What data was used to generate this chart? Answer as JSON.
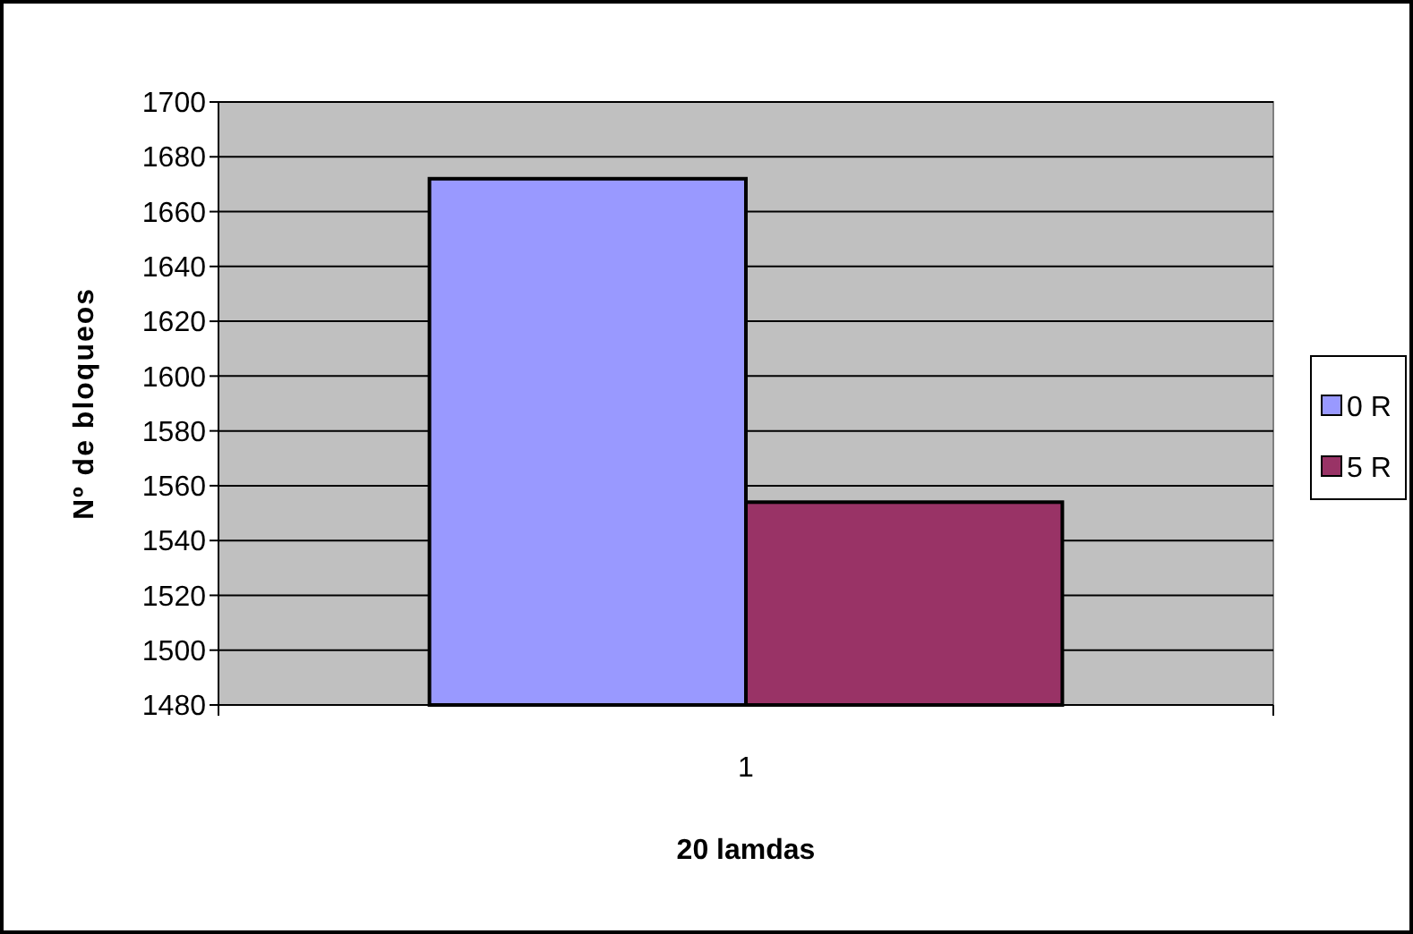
{
  "chart_data": {
    "type": "bar",
    "xlabel": "20 lamdas",
    "ylabel": "Nº de bloqueos",
    "categories": [
      "1"
    ],
    "series": [
      {
        "name": "0 R",
        "color": "#9999ff",
        "values": [
          1672
        ]
      },
      {
        "name": "5 R",
        "color": "#993366",
        "values": [
          1554
        ]
      }
    ],
    "ylim": [
      1480,
      1700
    ],
    "yticks": [
      1480,
      1500,
      1520,
      1540,
      1560,
      1580,
      1600,
      1620,
      1640,
      1660,
      1680,
      1700
    ],
    "grid": "y",
    "legend": "right"
  }
}
